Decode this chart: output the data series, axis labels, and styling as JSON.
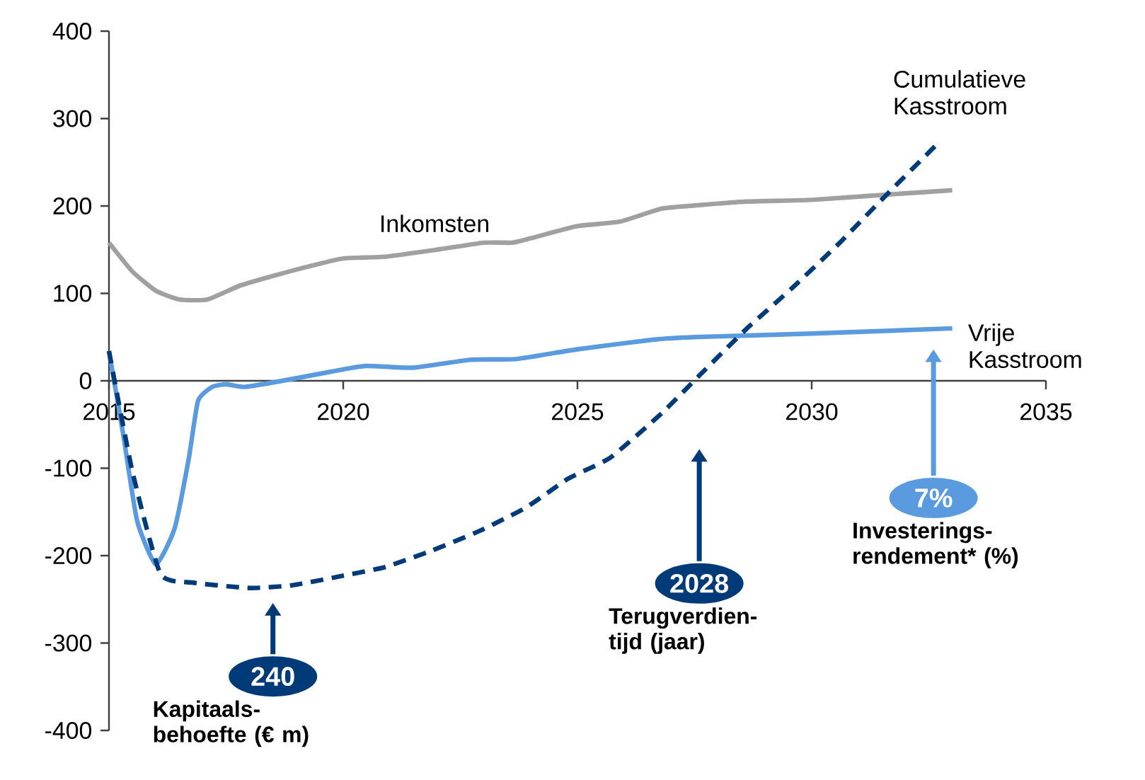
{
  "chart_data": {
    "type": "line",
    "xlim": [
      2015,
      2035
    ],
    "xticks": [
      2015,
      2020,
      2025,
      2030,
      2035
    ],
    "ylim": [
      -400,
      400
    ],
    "yticks": [
      -400,
      -300,
      -200,
      -100,
      0,
      100,
      200,
      300,
      400
    ],
    "series": [
      {
        "name": "Inkomsten",
        "color": "#a0a0a0",
        "line_style": "solid",
        "x": [
          2015,
          2015.5,
          2016,
          2016.5,
          2017.1,
          2017.8,
          2018.5,
          2019.2,
          2020,
          2020.9,
          2022,
          2023,
          2023.6,
          2024,
          2025,
          2025.9,
          2026.8,
          2027.6,
          2028.6,
          2030,
          2031.6,
          2033
        ],
        "values": [
          158,
          125,
          103,
          93,
          93,
          109,
          120,
          130,
          140,
          142,
          150,
          158,
          158,
          163,
          177,
          182,
          197,
          201,
          205,
          207,
          213,
          218
        ]
      },
      {
        "name": "Vrije Kasstroom",
        "color": "#5a9be0",
        "line_style": "solid",
        "x": [
          2015,
          2015.3,
          2015.6,
          2016,
          2016.4,
          2016.7,
          2016.9,
          2017.2,
          2017.5,
          2017.9,
          2018.7,
          2020,
          2020.5,
          2021.5,
          2022.7,
          2023.7,
          2025,
          2026.6,
          2027.5,
          2030,
          2033
        ],
        "values": [
          34,
          -60,
          -160,
          -210,
          -169,
          -90,
          -23,
          -7,
          -4,
          -7,
          0,
          13,
          17,
          15,
          24,
          25,
          36,
          47,
          50,
          54,
          60
        ]
      },
      {
        "name": "Cumulatieve Kasstroom",
        "color": "#003a78",
        "line_style": "dashed",
        "x": [
          2015,
          2015.5,
          2016.1,
          2016.8,
          2018,
          2018.9,
          2019.9,
          2020.9,
          2021.9,
          2022.9,
          2023.9,
          2024.8,
          2025.7,
          2026.8,
          2027.6,
          2028.6,
          2029.6,
          2030.6,
          2031.6,
          2032.7
        ],
        "values": [
          34,
          -104,
          -221,
          -231,
          -237,
          -234,
          -224,
          -213,
          -194,
          -172,
          -145,
          -112,
          -88,
          -37,
          6,
          59,
          107,
          158,
          213,
          272
        ]
      }
    ],
    "annotations": [
      "240",
      "2028",
      "7%",
      "Kapitaals-behoefte (€ m)",
      "Terugverdien-tijd (jaar)",
      "Investerings-rendement* (%)"
    ]
  }
}
